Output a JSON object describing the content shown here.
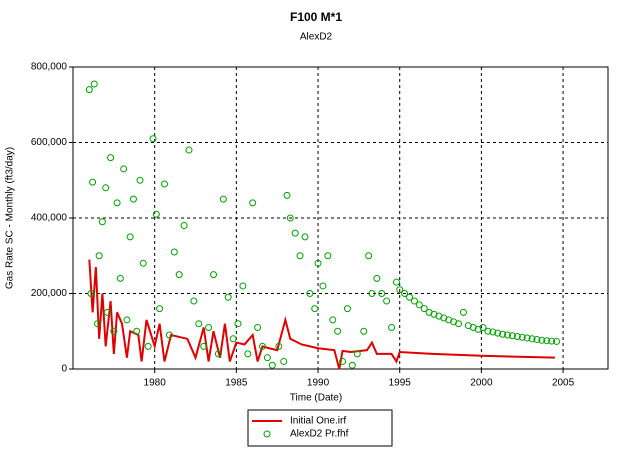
{
  "chart_data": {
    "type": "line",
    "title": "F100 M*1",
    "subtitle": "AlexD2",
    "x_label": "Time (Date)",
    "y_label": "Gas Rate SC - Monthly (ft3/day)",
    "xlim": [
      1975,
      2007.75
    ],
    "ylim": [
      0,
      800000
    ],
    "xticks": [
      1980,
      1985,
      1990,
      1995,
      2000,
      2005
    ],
    "yticks": [
      {
        "value": 0,
        "label": "0"
      },
      {
        "value": 200000,
        "label": "200,000"
      },
      {
        "value": 400000,
        "label": "400,000"
      },
      {
        "value": 600000,
        "label": "600,000"
      },
      {
        "value": 800000,
        "label": "800,000"
      }
    ],
    "grid": true,
    "legend": "bottom",
    "series": [
      {
        "name": "Initial One.irf",
        "color": "#e00000",
        "type": "line",
        "x": [
          1976.0,
          1976.2,
          1976.4,
          1976.6,
          1976.8,
          1977.0,
          1977.3,
          1977.5,
          1977.7,
          1978.0,
          1978.3,
          1978.5,
          1979.0,
          1979.2,
          1979.5,
          1980.0,
          1980.3,
          1980.6,
          1981.0,
          1981.5,
          1982.0,
          1982.5,
          1983.0,
          1983.3,
          1983.6,
          1984.0,
          1984.3,
          1984.6,
          1985.0,
          1985.5,
          1986.0,
          1986.3,
          1986.6,
          1987.0,
          1987.5,
          1988.0,
          1988.3,
          1989.0,
          1990.0,
          1991.0,
          1991.3,
          1991.5,
          1992.0,
          1993.0,
          1993.3,
          1993.6,
          1994.5,
          1994.8,
          1995.0,
          1997.0,
          2000.0,
          2004.5
        ],
        "values": [
          290000,
          150000,
          270000,
          80000,
          200000,
          60000,
          180000,
          40000,
          150000,
          120000,
          30000,
          100000,
          90000,
          20000,
          130000,
          60000,
          120000,
          20000,
          90000,
          85000,
          80000,
          30000,
          110000,
          20000,
          100000,
          30000,
          120000,
          20000,
          70000,
          65000,
          90000,
          20000,
          60000,
          55000,
          50000,
          130000,
          80000,
          65000,
          55000,
          50000,
          0,
          48000,
          45000,
          50000,
          70000,
          40000,
          40000,
          20000,
          45000,
          40000,
          35000,
          30000
        ]
      },
      {
        "name": "AlexD2 Pr.fhf",
        "color": "#00a000",
        "type": "scatter",
        "x": [
          1976.0,
          1976.1,
          1976.2,
          1976.3,
          1976.5,
          1976.6,
          1976.8,
          1977.0,
          1977.1,
          1977.3,
          1977.5,
          1977.7,
          1977.9,
          1978.1,
          1978.3,
          1978.5,
          1978.7,
          1978.9,
          1979.1,
          1979.3,
          1979.6,
          1979.9,
          1980.1,
          1980.3,
          1980.6,
          1980.9,
          1981.2,
          1981.5,
          1981.8,
          1982.1,
          1982.4,
          1982.7,
          1983.0,
          1983.3,
          1983.6,
          1983.9,
          1984.2,
          1984.5,
          1984.8,
          1985.1,
          1985.4,
          1985.7,
          1986.0,
          1986.3,
          1986.6,
          1986.9,
          1987.2,
          1987.6,
          1987.9,
          1988.1,
          1988.3,
          1988.6,
          1988.9,
          1989.2,
          1989.5,
          1989.8,
          1990.0,
          1990.3,
          1990.6,
          1990.9,
          1991.2,
          1991.5,
          1991.8,
          1992.1,
          1992.4,
          1992.8,
          1993.1,
          1993.3,
          1993.6,
          1993.9,
          1994.2,
          1994.5,
          1994.8,
          1995.0,
          1995.3,
          1995.6,
          1995.9,
          1996.2,
          1996.5,
          1996.8,
          1997.1,
          1997.4,
          1997.7,
          1998.0,
          1998.3,
          1998.6,
          1998.9,
          1999.2,
          1999.5,
          1999.8,
          2000.1,
          2000.4,
          2000.7,
          2001.0,
          2001.3,
          2001.6,
          2001.9,
          2002.2,
          2002.5,
          2002.8,
          2003.1,
          2003.4,
          2003.7,
          2004.0,
          2004.3,
          2004.6
        ],
        "values": [
          740000,
          200000,
          495000,
          755000,
          120000,
          300000,
          390000,
          480000,
          150000,
          560000,
          100000,
          440000,
          240000,
          530000,
          130000,
          350000,
          450000,
          100000,
          500000,
          280000,
          60000,
          610000,
          410000,
          160000,
          490000,
          90000,
          310000,
          250000,
          380000,
          580000,
          180000,
          120000,
          60000,
          110000,
          250000,
          40000,
          450000,
          190000,
          80000,
          120000,
          220000,
          40000,
          440000,
          110000,
          60000,
          30000,
          10000,
          60000,
          20000,
          460000,
          400000,
          360000,
          300000,
          350000,
          200000,
          160000,
          280000,
          220000,
          300000,
          130000,
          100000,
          20000,
          160000,
          10000,
          40000,
          100000,
          300000,
          200000,
          240000,
          200000,
          180000,
          110000,
          230000,
          210000,
          200000,
          190000,
          180000,
          170000,
          160000,
          150000,
          145000,
          140000,
          135000,
          130000,
          125000,
          120000,
          150000,
          115000,
          110000,
          105000,
          110000,
          100000,
          98000,
          95000,
          92000,
          90000,
          88000,
          86000,
          84000,
          82000,
          80000,
          78000,
          76000,
          75000,
          74000,
          73000
        ]
      }
    ]
  }
}
